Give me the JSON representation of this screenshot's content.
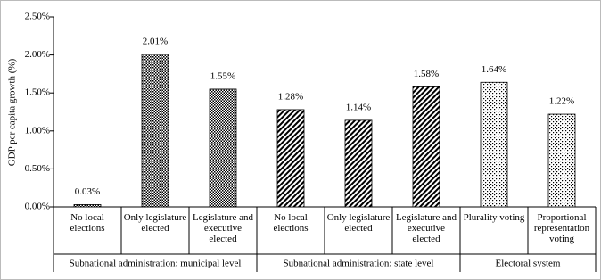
{
  "chart_data": {
    "type": "bar",
    "y_label": "GDP per capita growth (%)",
    "ylim": [
      0,
      2.5
    ],
    "yticks": [
      {
        "value": 0,
        "label": "0.00%"
      },
      {
        "value": 0.5,
        "label": "0.50%"
      },
      {
        "value": 1,
        "label": "1.00%"
      },
      {
        "value": 1.5,
        "label": "1.50%"
      },
      {
        "value": 2,
        "label": "2.00%"
      },
      {
        "value": 2.5,
        "label": "2.50%"
      }
    ],
    "groups": [
      {
        "name": "Subnational administration: municipal level",
        "pattern": "checker",
        "categories": [
          "No local elections",
          "Only legislature elected",
          "Legislature and executive elected"
        ],
        "values": [
          0.03,
          2.01,
          1.55
        ],
        "value_labels": [
          "0.03%",
          "2.01%",
          "1.55%"
        ]
      },
      {
        "name": "Subnational administration: state level",
        "pattern": "diagonal",
        "categories": [
          "No local elections",
          "Only legislature elected",
          "Legislature and executive elected"
        ],
        "values": [
          1.28,
          1.14,
          1.58
        ],
        "value_labels": [
          "1.28%",
          "1.14%",
          "1.58%"
        ]
      },
      {
        "name": "Electoral system",
        "pattern": "dots",
        "categories": [
          "Plurality voting",
          "Proportional representation voting"
        ],
        "values": [
          1.64,
          1.22
        ],
        "value_labels": [
          "1.64%",
          "1.22%"
        ]
      }
    ]
  }
}
